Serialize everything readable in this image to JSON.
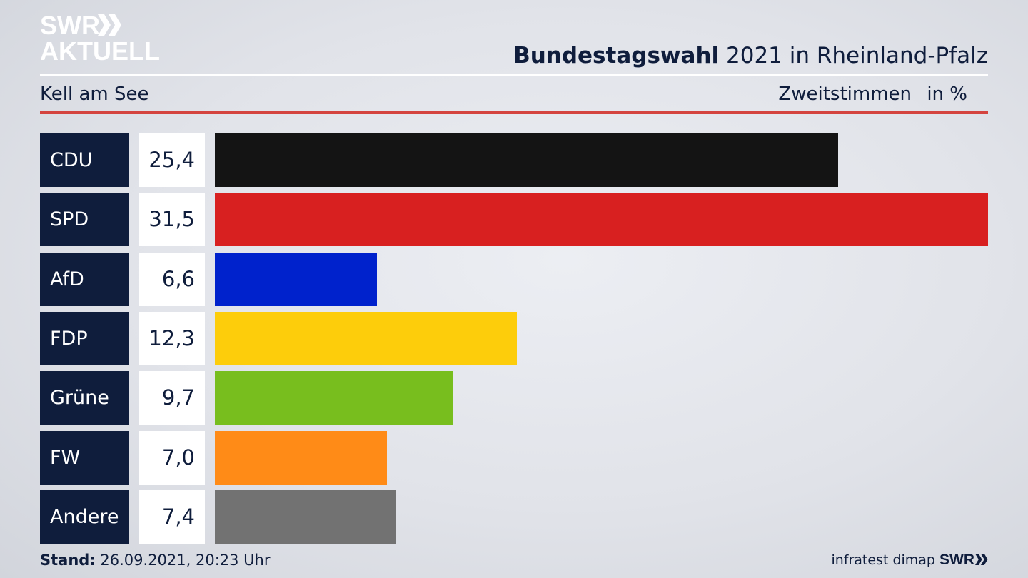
{
  "brand": {
    "line1": "SWR",
    "line2": "AKTUELL",
    "footer": "SWR"
  },
  "header": {
    "title_bold": "Bundestagswahl",
    "title_rest": " 2021 in Rheinland-Pfalz",
    "subtitle": "Kell am See",
    "measure": "Zweitstimmen",
    "unit": "in %"
  },
  "footer": {
    "stand_label": "Stand:",
    "stand_value": " 26.09.2021, 20:23 Uhr",
    "source": "infratest dimap"
  },
  "colors": {
    "navy": "#0f1d3c",
    "accent_red": "#d4443f"
  },
  "chart_data": {
    "type": "bar",
    "orientation": "horizontal",
    "categories": [
      "CDU",
      "SPD",
      "AfD",
      "FDP",
      "Grüne",
      "FW",
      "Andere"
    ],
    "values": [
      25.4,
      31.5,
      6.6,
      12.3,
      9.7,
      7.0,
      7.4
    ],
    "value_labels": [
      "25,4",
      "31,5",
      "6,6",
      "12,3",
      "9,7",
      "7,0",
      "7,4"
    ],
    "colors": [
      "#141414",
      "#d82020",
      "#0022cc",
      "#fdcd0b",
      "#78be1e",
      "#ff8b17",
      "#727272"
    ],
    "xlim": [
      0,
      31.5
    ],
    "grid": false,
    "legend": "none"
  }
}
